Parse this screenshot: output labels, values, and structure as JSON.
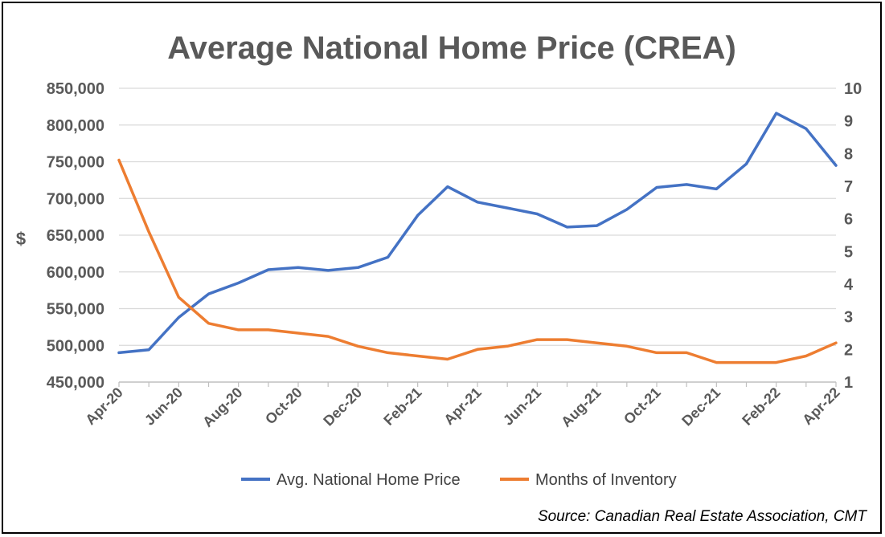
{
  "chart_data": {
    "type": "line",
    "title": "Average National Home Price (CREA)",
    "ylabel": "$",
    "y2label": "",
    "ylim": [
      450000,
      850000
    ],
    "y2lim": [
      1,
      10
    ],
    "yticks": [
      "450,000",
      "500,000",
      "550,000",
      "600,000",
      "650,000",
      "700,000",
      "750,000",
      "800,000",
      "850,000"
    ],
    "y2ticks": [
      "1",
      "2",
      "3",
      "4",
      "5",
      "6",
      "7",
      "8",
      "9",
      "10"
    ],
    "xticks": [
      "Apr-20",
      "Jun-20",
      "Aug-20",
      "Oct-20",
      "Dec-20",
      "Feb-21",
      "Apr-21",
      "Jun-21",
      "Aug-21",
      "Oct-21",
      "Dec-21",
      "Feb-22",
      "Apr-22"
    ],
    "x": [
      "Apr-20",
      "May-20",
      "Jun-20",
      "Jul-20",
      "Aug-20",
      "Sep-20",
      "Oct-20",
      "Nov-20",
      "Dec-20",
      "Jan-21",
      "Feb-21",
      "Mar-21",
      "Apr-21",
      "May-21",
      "Jun-21",
      "Jul-21",
      "Aug-21",
      "Sep-21",
      "Oct-21",
      "Nov-21",
      "Dec-21",
      "Jan-22",
      "Feb-22",
      "Mar-22",
      "Apr-22"
    ],
    "series": [
      {
        "name": "Avg. National Home Price",
        "axis": "left",
        "color": "#4472C4",
        "values": [
          490000,
          494000,
          538000,
          570000,
          585000,
          603000,
          606000,
          602000,
          606000,
          620000,
          677000,
          716000,
          695000,
          687000,
          679000,
          661000,
          663000,
          685000,
          715000,
          719000,
          713000,
          747000,
          816000,
          795000,
          745000
        ]
      },
      {
        "name": "Months of Inventory",
        "axis": "right",
        "color": "#ED7D31",
        "values": [
          7.8,
          5.6,
          3.6,
          2.8,
          2.6,
          2.6,
          2.5,
          2.4,
          2.1,
          1.9,
          1.8,
          1.7,
          2.0,
          2.1,
          2.3,
          2.3,
          2.2,
          2.1,
          1.9,
          1.9,
          1.6,
          1.6,
          1.6,
          1.8,
          2.2
        ]
      }
    ],
    "grid": true,
    "legend": "bottom",
    "source": "Source: Canadian Real Estate Association, CMT"
  }
}
